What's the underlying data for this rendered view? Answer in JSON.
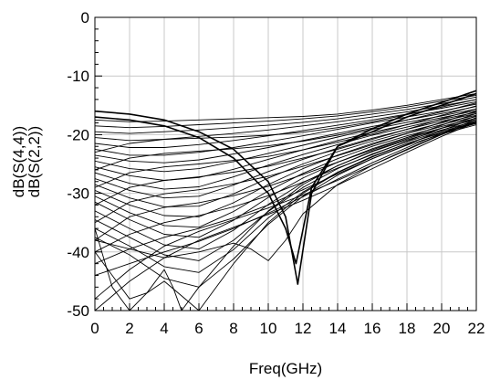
{
  "chart_data": {
    "type": "line",
    "xlabel": "Freq(GHz)",
    "ylabel": [
      "dB(S(4,4))",
      "dB(S(2,2))"
    ],
    "xlim": [
      0,
      22
    ],
    "ylim": [
      -50,
      0
    ],
    "xticks": [
      0,
      2,
      4,
      6,
      8,
      10,
      12,
      14,
      16,
      18,
      20,
      22
    ],
    "yticks": [
      0,
      -10,
      -20,
      -30,
      -40,
      -50
    ],
    "grid": true,
    "legend": "none",
    "colors": {
      "grid": "#c8c8c8",
      "trace": "#000000",
      "axis": "#000000"
    },
    "series": [
      {
        "x": [
          0,
          2,
          4,
          6,
          8,
          10,
          11,
          11.7,
          12.5,
          14,
          16,
          18,
          20,
          22
        ],
        "y": [
          -16,
          -16.5,
          -17.5,
          -19.5,
          -22.5,
          -28,
          -34,
          -45.5,
          -30,
          -22,
          -19,
          -16.5,
          -14.5,
          -12.5
        ]
      },
      {
        "x": [
          0,
          2,
          4,
          6,
          8,
          10,
          11,
          11.6,
          12.5,
          14,
          16,
          18,
          20,
          22
        ],
        "y": [
          -17,
          -17.5,
          -18.5,
          -20.5,
          -24,
          -30,
          -36,
          -42,
          -29,
          -22,
          -19.5,
          -17,
          -15,
          -13
        ]
      },
      {
        "x": [
          0,
          2,
          4,
          6,
          8,
          10,
          12,
          14,
          16,
          18,
          20,
          22
        ],
        "y": [
          -17.5,
          -17.8,
          -17.7,
          -17.5,
          -17.3,
          -17.1,
          -16.9,
          -16.5,
          -15.8,
          -15,
          -14,
          -13
        ]
      },
      {
        "x": [
          0,
          2,
          4,
          6,
          8,
          10,
          12,
          14,
          16,
          18,
          20,
          22
        ],
        "y": [
          -18.5,
          -18.8,
          -18.6,
          -18.3,
          -18,
          -17.7,
          -17.3,
          -16.8,
          -16.1,
          -15.3,
          -14.3,
          -13.3
        ]
      },
      {
        "x": [
          0,
          2,
          4,
          6,
          8,
          10,
          12,
          14,
          16,
          18,
          20,
          22
        ],
        "y": [
          -19.5,
          -19.8,
          -19.5,
          -19.2,
          -18.8,
          -18.4,
          -17.9,
          -17.3,
          -16.5,
          -15.7,
          -14.7,
          -13.6
        ]
      },
      {
        "x": [
          0,
          2,
          4,
          6,
          8,
          10,
          12,
          14,
          16,
          18,
          20,
          22
        ],
        "y": [
          -20.5,
          -21,
          -20.8,
          -20.3,
          -19.8,
          -19.2,
          -18.5,
          -17.8,
          -17,
          -16.1,
          -15.1,
          -14
        ]
      },
      {
        "x": [
          0,
          2,
          4,
          6,
          8,
          10,
          12,
          14,
          16,
          18,
          20,
          22
        ],
        "y": [
          -21.5,
          -22.2,
          -22.2,
          -21.7,
          -21,
          -20.2,
          -19.3,
          -18.4,
          -17.5,
          -16.5,
          -15.5,
          -14.4
        ]
      },
      {
        "x": [
          0,
          2,
          4,
          6,
          8,
          10,
          12,
          14,
          16,
          18,
          20,
          22
        ],
        "y": [
          -22.5,
          -23.5,
          -23.5,
          -23,
          -22.2,
          -21.2,
          -20.2,
          -19.1,
          -18,
          -17,
          -16,
          -14.8
        ]
      },
      {
        "x": [
          0,
          2,
          4,
          6,
          8,
          10,
          12,
          14,
          16,
          18,
          20,
          22
        ],
        "y": [
          -23.5,
          -24.5,
          -24.8,
          -24.3,
          -23.3,
          -22.2,
          -21,
          -19.8,
          -18.6,
          -17.5,
          -16.4,
          -15.2
        ]
      },
      {
        "x": [
          0,
          2,
          4,
          6,
          8,
          10,
          12,
          14,
          16,
          18,
          20,
          22
        ],
        "y": [
          -24.5,
          -25.8,
          -26.3,
          -25.8,
          -24.6,
          -23.2,
          -21.8,
          -20.4,
          -19.1,
          -17.9,
          -16.8,
          -15.6
        ]
      },
      {
        "x": [
          0,
          2,
          4,
          6,
          8,
          10,
          12,
          14,
          16,
          18,
          20,
          22
        ],
        "y": [
          -25.5,
          -27,
          -27.8,
          -27.3,
          -25.9,
          -24.2,
          -22.6,
          -21,
          -19.6,
          -18.3,
          -17.1,
          -15.9
        ]
      },
      {
        "x": [
          0,
          2,
          4,
          6,
          8,
          10,
          12,
          14,
          16,
          18,
          20,
          22
        ],
        "y": [
          -26.5,
          -28.3,
          -29.3,
          -28.9,
          -27.2,
          -25.2,
          -23.4,
          -21.7,
          -20.1,
          -18.7,
          -17.4,
          -16.2
        ]
      },
      {
        "x": [
          0,
          2,
          4,
          6,
          8,
          10,
          12,
          14,
          16,
          18,
          20,
          22
        ],
        "y": [
          -27.5,
          -29.5,
          -30.8,
          -30.5,
          -28.6,
          -26.3,
          -24.2,
          -22.3,
          -20.6,
          -19.1,
          -17.7,
          -16.4
        ]
      },
      {
        "x": [
          0,
          2,
          4,
          6,
          8,
          10,
          12,
          14,
          16,
          18,
          20,
          22
        ],
        "y": [
          -28.5,
          -30.8,
          -32.3,
          -32.2,
          -30.1,
          -27.4,
          -25,
          -22.9,
          -21.1,
          -19.5,
          -18,
          -16.7
        ]
      },
      {
        "x": [
          0,
          2,
          4,
          6,
          8,
          10,
          12,
          14,
          16,
          18,
          20,
          22
        ],
        "y": [
          -29.5,
          -32,
          -33.8,
          -34,
          -31.6,
          -28.5,
          -25.8,
          -23.5,
          -21.5,
          -19.8,
          -18.3,
          -16.9
        ]
      },
      {
        "x": [
          0,
          2,
          4,
          6,
          8,
          10,
          12,
          14,
          16,
          18,
          20,
          22
        ],
        "y": [
          -30.5,
          -33.3,
          -35.5,
          -35.8,
          -33.1,
          -29.6,
          -26.6,
          -24.1,
          -22,
          -20.2,
          -18.6,
          -17.2
        ]
      },
      {
        "x": [
          0,
          2,
          4,
          6,
          8,
          10,
          12,
          14,
          16,
          18,
          20,
          22
        ],
        "y": [
          -31.5,
          -34.5,
          -37,
          -37.5,
          -34.6,
          -30.7,
          -27.4,
          -24.7,
          -22.4,
          -20.5,
          -18.9,
          -17.4
        ]
      },
      {
        "x": [
          0,
          2,
          4,
          6,
          8,
          10,
          12,
          14,
          16,
          18,
          20,
          22
        ],
        "y": [
          -33,
          -36,
          -38.8,
          -39.5,
          -36.3,
          -31.9,
          -28.2,
          -25.3,
          -22.9,
          -20.9,
          -19.2,
          -17.7
        ]
      },
      {
        "x": [
          0,
          2,
          4,
          6,
          8,
          10,
          12,
          14,
          16,
          18,
          20,
          22
        ],
        "y": [
          -34.5,
          -37.5,
          -40.5,
          -41.5,
          -38,
          -33.1,
          -29,
          -25.8,
          -23.3,
          -21.2,
          -19.4,
          -17.9
        ]
      },
      {
        "x": [
          0,
          2,
          4,
          6,
          8,
          10,
          12,
          14,
          16,
          18,
          20,
          22
        ],
        "y": [
          -36,
          -39,
          -42.5,
          -43.5,
          -39.6,
          -34.2,
          -29.8,
          -26.4,
          -23.7,
          -21.5,
          -19.7,
          -18.1
        ]
      },
      {
        "x": [
          0,
          2,
          4,
          6,
          8,
          10,
          12,
          14,
          16,
          18,
          20,
          22
        ],
        "y": [
          -37.5,
          -40.5,
          -44.5,
          -46,
          -41.2,
          -35.3,
          -30.5,
          -26.9,
          -24.1,
          -21.8,
          -19.9,
          -18.3
        ]
      },
      {
        "x": [
          0,
          1,
          2,
          3,
          4,
          5,
          6,
          8,
          10,
          12,
          14,
          16,
          18,
          20,
          22
        ],
        "y": [
          -40,
          -44,
          -48,
          -47,
          -45,
          -47.5,
          -50,
          -42,
          -35,
          -30,
          -26.5,
          -23.8,
          -21.5,
          -19.6,
          -18
        ]
      },
      {
        "x": [
          0,
          0.5,
          1,
          2,
          3,
          4,
          4.5,
          5,
          6,
          8,
          10,
          12,
          14,
          16,
          18,
          20,
          22
        ],
        "y": [
          -36,
          -41,
          -46,
          -50,
          -47,
          -43,
          -46,
          -50,
          -46,
          -39,
          -33,
          -28.5,
          -25.3,
          -22.8,
          -20.7,
          -18.9,
          -17.4
        ]
      },
      {
        "x": [
          0,
          2,
          4,
          6,
          8,
          10,
          12,
          14,
          16,
          18,
          20,
          22
        ],
        "y": [
          -23,
          -21.5,
          -20.8,
          -20.6,
          -20.4,
          -20.1,
          -19.6,
          -18.8,
          -17.8,
          -16.6,
          -15.3,
          -14
        ]
      },
      {
        "x": [
          0,
          2,
          4,
          6,
          8,
          10,
          12,
          14,
          16,
          18,
          20,
          22
        ],
        "y": [
          -26,
          -24,
          -23.2,
          -22.8,
          -22.4,
          -21.9,
          -21.1,
          -20.1,
          -18.9,
          -17.5,
          -16.1,
          -14.6
        ]
      },
      {
        "x": [
          0,
          2,
          4,
          6,
          8,
          10,
          12,
          14,
          16,
          18,
          20,
          22
        ],
        "y": [
          -29,
          -26.5,
          -25.5,
          -25,
          -24.4,
          -23.7,
          -22.6,
          -21.3,
          -19.9,
          -18.3,
          -16.7,
          -15.1
        ]
      },
      {
        "x": [
          0,
          2,
          4,
          6,
          8,
          10,
          12,
          14,
          16,
          18,
          20,
          22
        ],
        "y": [
          -32,
          -29,
          -27.8,
          -27.2,
          -26.4,
          -25.4,
          -24,
          -22.5,
          -20.8,
          -19.1,
          -17.3,
          -15.6
        ]
      },
      {
        "x": [
          0,
          2,
          4,
          6,
          8,
          10,
          12,
          14,
          16,
          18,
          20,
          22
        ],
        "y": [
          -35,
          -31.5,
          -30.1,
          -29.4,
          -28.4,
          -27.1,
          -25.4,
          -23.6,
          -21.7,
          -19.8,
          -17.9,
          -16
        ]
      },
      {
        "x": [
          0,
          2,
          4,
          6,
          8,
          10,
          12,
          14,
          16,
          18,
          20,
          22
        ],
        "y": [
          -38,
          -34,
          -32.4,
          -31.6,
          -30.4,
          -28.8,
          -26.8,
          -24.7,
          -22.6,
          -20.5,
          -18.4,
          -16.4
        ]
      },
      {
        "x": [
          0,
          2,
          4,
          6,
          8,
          10,
          12,
          14,
          16,
          18,
          20,
          22
        ],
        "y": [
          -40,
          -37,
          -35,
          -33.8,
          -32.3,
          -30.4,
          -28.1,
          -25.7,
          -23.4,
          -21.1,
          -18.9,
          -16.8
        ]
      },
      {
        "x": [
          0,
          2,
          4,
          6,
          8,
          10,
          12,
          14,
          16,
          18,
          20,
          22
        ],
        "y": [
          -42,
          -39.5,
          -37.5,
          -36,
          -34.2,
          -32,
          -29.4,
          -26.7,
          -24.1,
          -21.7,
          -19.3,
          -17.1
        ]
      },
      {
        "x": [
          0,
          2,
          4,
          6,
          8,
          10,
          12,
          14,
          16,
          18,
          20,
          22
        ],
        "y": [
          -44,
          -42,
          -40,
          -38.2,
          -36,
          -33.4,
          -30.6,
          -27.6,
          -24.8,
          -22.2,
          -19.7,
          -17.4
        ]
      },
      {
        "x": [
          0,
          2,
          4,
          6,
          8,
          9,
          10,
          11,
          12,
          14,
          16,
          18,
          20,
          22
        ],
        "y": [
          -38,
          -39.5,
          -41,
          -40,
          -38.5,
          -39.5,
          -41.5,
          -38,
          -33.5,
          -28.5,
          -25.2,
          -22.5,
          -19.9,
          -17.6
        ]
      },
      {
        "x": [
          0,
          2,
          4,
          6,
          8,
          10,
          12,
          14,
          16,
          18,
          20,
          22
        ],
        "y": [
          -48,
          -43,
          -39,
          -36.5,
          -34.5,
          -32.5,
          -30.3,
          -27.8,
          -25.2,
          -22.6,
          -20,
          -17.7
        ]
      },
      {
        "x": [
          0,
          2,
          4,
          6,
          8,
          10,
          12,
          14,
          16,
          18,
          20,
          22
        ],
        "y": [
          -50,
          -45,
          -41,
          -38,
          -35.8,
          -33.6,
          -31.2,
          -28.6,
          -25.8,
          -23,
          -20.3,
          -17.9
        ]
      }
    ]
  }
}
